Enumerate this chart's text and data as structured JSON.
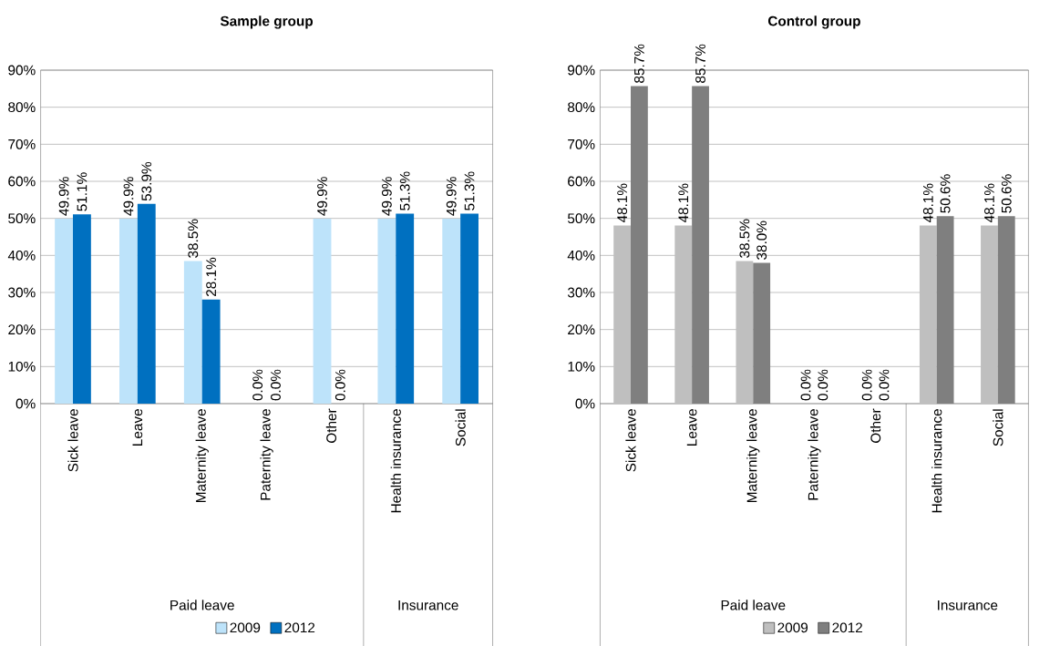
{
  "chart_data": [
    {
      "type": "bar",
      "title": "Sample group",
      "categories": [
        "Sick leave",
        "Leave",
        "Maternity leave",
        "Paternity leave",
        "Other",
        "Health insurance",
        "Social"
      ],
      "series": [
        {
          "name": "2009",
          "color": "#bde3fa",
          "values": [
            49.9,
            49.9,
            38.5,
            0.0,
            49.9,
            49.9,
            49.9
          ],
          "value_labels": [
            "49.9%",
            "49.9%",
            "38.5%",
            "0.0%",
            "49.9%",
            "49.9%",
            "49.9%"
          ]
        },
        {
          "name": "2012",
          "color": "#0070c0",
          "values": [
            51.1,
            53.9,
            28.1,
            0.0,
            0.0,
            51.3,
            51.3
          ],
          "value_labels": [
            "51.1%",
            "53.9%",
            "28.1%",
            "0.0%",
            "0.0%",
            "51.3%",
            "51.3%"
          ]
        }
      ],
      "ylim": [
        0,
        90
      ],
      "yticks": [
        {
          "value": 0,
          "label": "0%"
        },
        {
          "value": 10,
          "label": "10%"
        },
        {
          "value": 20,
          "label": "20%"
        },
        {
          "value": 30,
          "label": "30%"
        },
        {
          "value": 40,
          "label": "40%"
        },
        {
          "value": 50,
          "label": "50%"
        },
        {
          "value": 60,
          "label": "60%"
        },
        {
          "value": 70,
          "label": "70%"
        },
        {
          "value": 80,
          "label": "80%"
        },
        {
          "value": 90,
          "label": "90%"
        }
      ],
      "grid": "y",
      "legend": "bottom",
      "annotations": [
        "Paid leave",
        "Insurance"
      ]
    },
    {
      "type": "bar",
      "title": "Control group",
      "categories": [
        "Sick leave",
        "Leave",
        "Maternity leave",
        "Paternity leave",
        "Other",
        "Health insurance",
        "Social"
      ],
      "series": [
        {
          "name": "2009",
          "color": "#bfbfbf",
          "values": [
            48.1,
            48.1,
            38.5,
            0.0,
            0.0,
            48.1,
            48.1
          ],
          "value_labels": [
            "48.1%",
            "48.1%",
            "38.5%",
            "0.0%",
            "0.0%",
            "48.1%",
            "48.1%"
          ]
        },
        {
          "name": "2012",
          "color": "#7f7f7f",
          "values": [
            85.7,
            85.7,
            38.0,
            0.0,
            0.0,
            50.6,
            50.6
          ],
          "value_labels": [
            "85.7%",
            "85.7%",
            "38.0%",
            "0.0%",
            "0.0%",
            "50.6%",
            "50.6%"
          ]
        }
      ],
      "ylim": [
        0,
        90
      ],
      "yticks": [
        {
          "value": 0,
          "label": "0%"
        },
        {
          "value": 10,
          "label": "10%"
        },
        {
          "value": 20,
          "label": "20%"
        },
        {
          "value": 30,
          "label": "30%"
        },
        {
          "value": 40,
          "label": "40%"
        },
        {
          "value": 50,
          "label": "50%"
        },
        {
          "value": 60,
          "label": "60%"
        },
        {
          "value": 70,
          "label": "70%"
        },
        {
          "value": 80,
          "label": "80%"
        },
        {
          "value": 90,
          "label": "90%"
        }
      ],
      "grid": "y",
      "legend": "bottom",
      "annotations": [
        "Paid leave",
        "Insurance"
      ]
    }
  ]
}
